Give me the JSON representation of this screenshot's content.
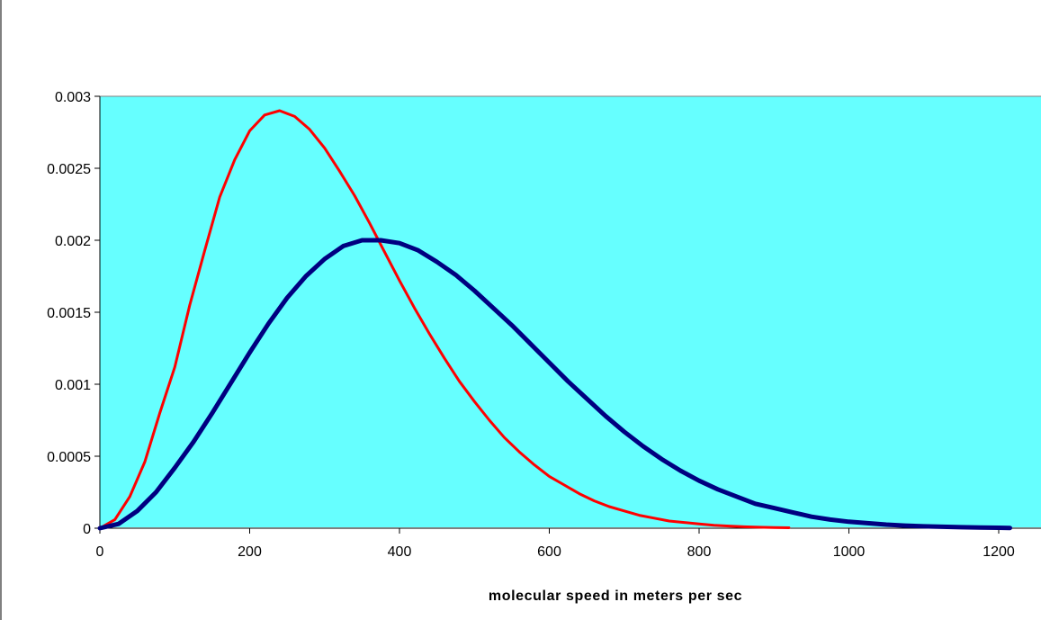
{
  "chart_data": {
    "type": "line",
    "title": "",
    "xlabel": "molecular speed in meters per sec",
    "ylabel": "",
    "xlim": [
      0,
      1200
    ],
    "ylim": [
      0,
      0.003
    ],
    "x_ticks": [
      "0",
      "200",
      "400",
      "600",
      "800",
      "1000",
      "1200"
    ],
    "y_ticks": [
      "0",
      "0.0005",
      "0.001",
      "0.0015",
      "0.002",
      "0.0025",
      "0.003"
    ],
    "grid": false,
    "legend": "none",
    "plot_background": "#66FFFF",
    "series": [
      {
        "color": "#FF0000",
        "x": [
          0,
          20,
          40,
          60,
          80,
          100,
          120,
          140,
          160,
          180,
          200,
          220,
          240,
          260,
          280,
          300,
          320,
          340,
          360,
          380,
          400,
          420,
          440,
          460,
          480,
          500,
          520,
          540,
          560,
          580,
          600,
          620,
          640,
          660,
          680,
          700,
          720,
          740,
          760,
          780,
          800,
          820,
          840,
          860,
          880,
          900,
          920
        ],
        "y": [
          0,
          6e-05,
          0.00022,
          0.00046,
          0.0008,
          0.00112,
          0.00155,
          0.00193,
          0.0023,
          0.00256,
          0.00276,
          0.00287,
          0.0029,
          0.00286,
          0.00277,
          0.00264,
          0.00248,
          0.00231,
          0.00212,
          0.00192,
          0.00172,
          0.00153,
          0.00135,
          0.00118,
          0.00102,
          0.00088,
          0.00075,
          0.00063,
          0.00053,
          0.00044,
          0.00036,
          0.0003,
          0.00024,
          0.00019,
          0.00015,
          0.00012,
          9e-05,
          7e-05,
          5e-05,
          4e-05,
          3e-05,
          2e-05,
          1.5e-05,
          1e-05,
          7e-06,
          5e-06,
          3e-06
        ]
      },
      {
        "color": "#000080",
        "x": [
          0,
          25,
          50,
          75,
          100,
          125,
          150,
          175,
          200,
          225,
          250,
          275,
          300,
          325,
          350,
          375,
          400,
          425,
          450,
          475,
          500,
          525,
          550,
          575,
          600,
          625,
          650,
          675,
          700,
          725,
          750,
          775,
          800,
          825,
          850,
          875,
          900,
          925,
          950,
          975,
          1000,
          1025,
          1050,
          1075,
          1100,
          1125,
          1150,
          1175,
          1200,
          1215
        ],
        "y": [
          0,
          3e-05,
          0.00012,
          0.00025,
          0.00042,
          0.0006,
          0.0008,
          0.00101,
          0.00122,
          0.00142,
          0.0016,
          0.00175,
          0.00187,
          0.00196,
          0.002,
          0.002,
          0.00198,
          0.00193,
          0.00185,
          0.00176,
          0.00165,
          0.00153,
          0.00141,
          0.00128,
          0.00115,
          0.00102,
          0.0009,
          0.00078,
          0.00067,
          0.00057,
          0.00048,
          0.0004,
          0.00033,
          0.00027,
          0.00022,
          0.00017,
          0.00014,
          0.00011,
          8e-05,
          6e-05,
          4.5e-05,
          3.5e-05,
          2.5e-05,
          1.8e-05,
          1.3e-05,
          1e-05,
          7e-06,
          5e-06,
          3e-06,
          2e-06
        ]
      }
    ]
  }
}
